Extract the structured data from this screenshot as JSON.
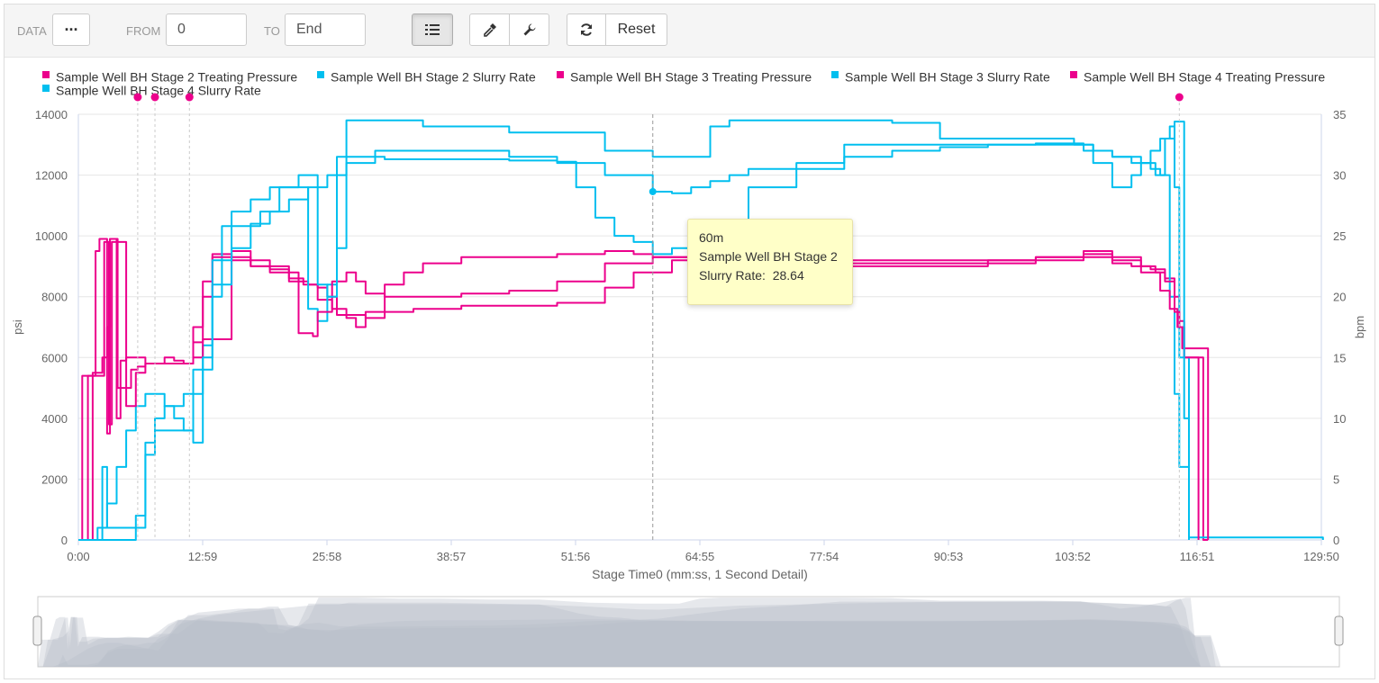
{
  "toolbar": {
    "data_label": "DATA",
    "data_menu_icon": "ellipsis-icon",
    "from_label": "FROM",
    "from_value": "0",
    "to_label": "TO",
    "to_value": "End",
    "list_icon": "list-icon",
    "picker_icon": "eyedropper-icon",
    "settings_icon": "wrench-icon",
    "refresh_icon": "refresh-icon",
    "reset_label": "Reset"
  },
  "tooltip": {
    "time": "60m",
    "series": "Sample Well BH Stage 2",
    "field_label": "Slurry Rate:",
    "field_value": "28.64"
  },
  "chart_data": {
    "type": "line",
    "xlabel": "Stage Time0 (mm:ss, 1 Second Detail)",
    "ylabel_left": "psi",
    "ylabel_right": "bpm",
    "xlim_seconds": [
      0,
      7790
    ],
    "ylim_left": [
      0,
      14000
    ],
    "ylim_right": [
      0,
      35
    ],
    "x_tick_labels": [
      "0:00",
      "12:59",
      "25:58",
      "38:57",
      "51:56",
      "64:55",
      "77:54",
      "90:53",
      "103:52",
      "116:51",
      "129:50"
    ],
    "y_left_ticks": [
      "0",
      "2000",
      "4000",
      "6000",
      "8000",
      "10000",
      "12000",
      "14000"
    ],
    "y_right_ticks": [
      "0",
      "5",
      "10",
      "15",
      "20",
      "25",
      "30",
      "35"
    ],
    "grid": true,
    "legend_position": "top",
    "colors": {
      "pressure": "#ec008c",
      "rate": "#00bfef",
      "crosshair": "#999999",
      "navigator": "#b8bec8"
    },
    "crosshair_x_min": 60,
    "series": [
      {
        "name": "Sample Well BH Stage 2 Treating Pressure",
        "axis": "left",
        "color": "#ec008c",
        "x_min": [
          0,
          0.4,
          1.2,
          1.8,
          2.2,
          2.7,
          3.0,
          3.3,
          3.6,
          3.9,
          4.1,
          4.4,
          4.8,
          5.5,
          6.2,
          7.0,
          8.0,
          9.0,
          10.0,
          11.0,
          12.0,
          13.0,
          14.0,
          16.0,
          18.0,
          20.0,
          22.0,
          23.5,
          25.0,
          26.0,
          27.0,
          28.0,
          29.0,
          30.0,
          32.0,
          34.0,
          36.0,
          40.0,
          45.0,
          50.0,
          55.0,
          58.0,
          60.0,
          65.0,
          70.0,
          75.0,
          80.0,
          85.0,
          90.0,
          95.0,
          100.0,
          105.0,
          108.0,
          111.0,
          112.5,
          113.5,
          114.5,
          115.0,
          115.5,
          116.0,
          116.5,
          117.0,
          117.5,
          118.0
        ],
        "y": [
          0,
          5400,
          5400,
          9500,
          9900,
          9900,
          3500,
          9900,
          9900,
          9900,
          5000,
          5000,
          5000,
          5600,
          5700,
          5800,
          5800,
          5800,
          5800,
          5800,
          6500,
          6600,
          6600,
          9500,
          9200,
          9000,
          8600,
          8400,
          8300,
          8000,
          7400,
          7300,
          7000,
          7500,
          8400,
          8800,
          9100,
          9300,
          9300,
          9400,
          9500,
          9400,
          9300,
          9200,
          9100,
          9100,
          9100,
          9100,
          9100,
          9100,
          9300,
          9500,
          9300,
          9000,
          8800,
          8600,
          8000,
          7200,
          6000,
          6000,
          6000,
          6000,
          0,
          0
        ]
      },
      {
        "name": "Sample Well BH Stage 2 Slurry Rate",
        "axis": "right",
        "color": "#00bfef",
        "x_min": [
          0,
          1.0,
          1.5,
          2.0,
          3.0,
          4.0,
          5.0,
          6.0,
          7.0,
          8.0,
          9.0,
          10.0,
          11.0,
          12.0,
          13.0,
          14.0,
          16.0,
          18.0,
          20.0,
          22.0,
          24.0,
          26.0,
          28.0,
          30.0,
          31.0,
          33.0,
          36.0,
          40.0,
          45.0,
          50.0,
          55.0,
          60.0,
          62.0,
          64.0,
          66.0,
          68.0,
          70.0,
          75.0,
          80.0,
          85.0,
          90.0,
          95.0,
          100.0,
          104.0,
          106.0,
          108.0,
          110.0,
          112.0,
          113.0,
          114.0,
          114.5,
          115.0,
          116.0,
          125.0,
          130.0
        ],
        "y": [
          0,
          0,
          0,
          1,
          3,
          6,
          9,
          11,
          12,
          12,
          11,
          10,
          9,
          8,
          14,
          21,
          24,
          26,
          27,
          28,
          29,
          30,
          31,
          31,
          32,
          32,
          32,
          32,
          31.5,
          31,
          30,
          28.64,
          28.5,
          29,
          29.5,
          30,
          30.5,
          31,
          31.5,
          32,
          32.3,
          32.5,
          32.5,
          32.5,
          32,
          31.5,
          31,
          30.5,
          30,
          20,
          12,
          6,
          0.2,
          0.2,
          0
        ]
      },
      {
        "name": "Sample Well BH Stage 3 Treating Pressure",
        "axis": "left",
        "color": "#ec008c",
        "x_min": [
          0,
          0.5,
          1.5,
          2.5,
          3.0,
          3.3,
          3.7,
          4.0,
          4.4,
          5.0,
          6.0,
          7.0,
          8.0,
          10.0,
          11.0,
          12.0,
          13.0,
          14.0,
          16.0,
          18.0,
          20.0,
          22.0,
          24.0,
          25.0,
          26.5,
          28.0,
          30.0,
          32.0,
          35.0,
          40.0,
          45.0,
          50.0,
          55.0,
          58.0,
          62.0,
          65.0,
          70.0,
          75.0,
          80.0,
          85.0,
          90.0,
          95.0,
          100.0,
          105.0,
          108.0,
          111.0,
          113.0,
          114.0,
          114.8,
          115.3,
          116.0,
          117.0,
          118.0
        ],
        "y": [
          0,
          0,
          5500,
          6000,
          7000,
          9900,
          9900,
          4000,
          5900,
          6000,
          6000,
          5800,
          5800,
          5800,
          5800,
          7000,
          8500,
          9400,
          9300,
          9000,
          8800,
          8500,
          8400,
          7900,
          7600,
          7400,
          7300,
          7500,
          7600,
          7700,
          7700,
          7800,
          8300,
          8800,
          9200,
          9100,
          9100,
          9100,
          9200,
          9200,
          9200,
          9200,
          9200,
          9400,
          9200,
          8800,
          8200,
          7600,
          7000,
          6300,
          6300,
          6300,
          0
        ]
      },
      {
        "name": "Sample Well BH Stage 3 Slurry Rate",
        "axis": "right",
        "color": "#00bfef",
        "x_min": [
          0,
          1.0,
          2.0,
          2.5,
          3.0,
          3.5,
          4.0,
          5.0,
          6.0,
          7.0,
          8.0,
          9.0,
          10.0,
          11.0,
          12.0,
          13.0,
          14.0,
          15.0,
          17.0,
          19.0,
          21.0,
          22.0,
          23.5,
          24.0,
          25.0,
          26.0,
          27.0,
          28.0,
          30.0,
          32.0,
          35.0,
          40.0,
          45.0,
          50.0,
          52.0,
          54.0,
          56.0,
          58.0,
          60.0,
          62.0,
          65.0,
          70.0,
          75.0,
          80.0,
          85.0,
          90.0,
          95.0,
          100.0,
          104.0,
          106.0,
          108.0,
          110.0,
          111.0,
          112.0,
          113.0,
          114.0,
          114.5,
          115.0,
          116.0
        ],
        "y": [
          0,
          0,
          0,
          6,
          1,
          1,
          1,
          1,
          2,
          7,
          9,
          9,
          9,
          9,
          14,
          16,
          20,
          25.8,
          25.8,
          27,
          29,
          29,
          29,
          19,
          18,
          21,
          31.5,
          31.5,
          31.5,
          31.3,
          31.3,
          31.3,
          31.2,
          31.1,
          29,
          26.5,
          25,
          24.5,
          23.5,
          24,
          26,
          29,
          30.5,
          32.5,
          32.5,
          32.5,
          32.5,
          32.6,
          32.5,
          31,
          29,
          30,
          31,
          32,
          33,
          34,
          29,
          15,
          0
        ]
      },
      {
        "name": "Sample Well BH Stage 4 Treating Pressure",
        "axis": "left",
        "color": "#ec008c",
        "x_min": [
          0,
          0.5,
          1.0,
          1.5,
          2.0,
          2.7,
          3.0,
          3.2,
          3.5,
          4.0,
          4.5,
          5.0,
          6.0,
          7.0,
          8.0,
          9.0,
          10.0,
          11.0,
          12.0,
          13.0,
          14.0,
          16.0,
          18.0,
          20.0,
          22.0,
          23.0,
          24.5,
          25.0,
          26.5,
          28.0,
          29.0,
          30.0,
          32.0,
          35.0,
          40.0,
          45.0,
          50.0,
          55.0,
          60.0,
          65.0,
          70.0,
          75.0,
          80.0,
          85.0,
          90.0,
          95.0,
          100.0,
          105.0,
          108.0,
          110.0,
          112.0,
          113.5,
          114.5,
          115.0,
          115.5,
          116.0,
          117.0
        ],
        "y": [
          0,
          0,
          5400,
          5400,
          5400,
          9800,
          9800,
          3800,
          9800,
          9800,
          9800,
          4400,
          5500,
          5800,
          5800,
          6000,
          5900,
          5800,
          6000,
          8000,
          9300,
          9200,
          9000,
          8900,
          8800,
          6800,
          6700,
          7500,
          8500,
          8800,
          8500,
          8100,
          8000,
          8000,
          8100,
          8200,
          8500,
          9100,
          9300,
          9100,
          9100,
          9100,
          9000,
          9000,
          9000,
          9200,
          9300,
          9300,
          9100,
          9000,
          8900,
          8500,
          7500,
          7000,
          6000,
          6000,
          0
        ]
      },
      {
        "name": "Sample Well BH Stage 4 Slurry Rate",
        "axis": "right",
        "color": "#00bfef",
        "x_min": [
          0,
          1.0,
          2.0,
          3.0,
          4.0,
          5.0,
          6.0,
          7.0,
          8.0,
          9.0,
          10.0,
          11.0,
          12.0,
          13.0,
          14.0,
          16.0,
          18.0,
          20.0,
          22.0,
          23.0,
          24.0,
          25.0,
          26.0,
          27.0,
          28.0,
          30.0,
          32.0,
          36.0,
          40.0,
          45.0,
          50.0,
          55.0,
          60.0,
          64.0,
          66.0,
          68.0,
          70.0,
          75.0,
          80.0,
          85.0,
          90.0,
          95.0,
          100.0,
          104.0,
          105.0,
          108.0,
          111.0,
          112.5,
          113.5,
          114.5,
          115.0,
          115.5,
          116.0
        ],
        "y": [
          0,
          0,
          0,
          0,
          0,
          0,
          1,
          8,
          10,
          11,
          11,
          12,
          12,
          15,
          23,
          27,
          28,
          29,
          29,
          30,
          30,
          21,
          20,
          24,
          34.5,
          34.5,
          34.5,
          34,
          34,
          33.5,
          33.5,
          32,
          31.5,
          31.5,
          34,
          34.5,
          34.5,
          34.5,
          34.5,
          34.3,
          33,
          33,
          33,
          32.6,
          32,
          31.5,
          31,
          30,
          33,
          34.4,
          34.4,
          10,
          0
        ]
      }
    ],
    "flag_markers_min": [
      6.2,
      8.0,
      11.6,
      115.0
    ]
  }
}
